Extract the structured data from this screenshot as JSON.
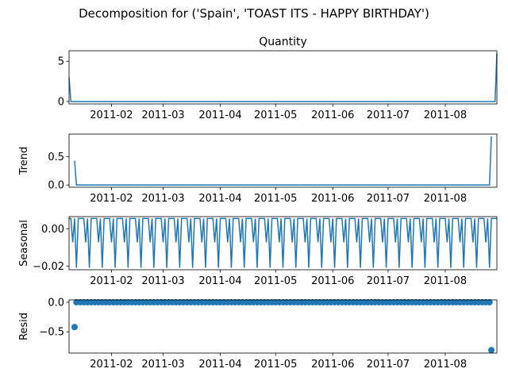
{
  "figure": {
    "suptitle": "Decomposition for ('Spain', 'TOAST ITS - HAPPY BIRTHDAY')"
  },
  "colors": {
    "series": "#1f77b4",
    "axes": "#000000"
  },
  "chart_data": [
    {
      "type": "line",
      "title": "Quantity",
      "ylabel": "",
      "xlim": [
        "2011-01-09",
        "2011-08-29"
      ],
      "ylim": [
        -0.3,
        6.3
      ],
      "x_ticks": [
        "2011-02",
        "2011-03",
        "2011-04",
        "2011-05",
        "2011-06",
        "2011-07",
        "2011-08"
      ],
      "y_ticks": [
        0,
        5
      ],
      "y_tick_labels": [
        "0",
        "5"
      ],
      "series": [
        {
          "x": [
            "2011-01-09",
            "2011-01-10",
            "2011-08-28",
            "2011-08-29"
          ],
          "y": [
            3,
            0,
            0,
            6
          ]
        }
      ]
    },
    {
      "type": "line",
      "title": "",
      "ylabel": "Trend",
      "xlim": [
        "2011-01-09",
        "2011-08-29"
      ],
      "ylim": [
        -0.04,
        0.9
      ],
      "x_ticks": [
        "2011-02",
        "2011-03",
        "2011-04",
        "2011-05",
        "2011-06",
        "2011-07",
        "2011-08"
      ],
      "y_ticks": [
        0.0,
        0.5
      ],
      "y_tick_labels": [
        "0.0",
        "0.5"
      ],
      "series": [
        {
          "x": [
            "2011-01-12",
            "2011-01-13",
            "2011-08-25",
            "2011-08-26"
          ],
          "y": [
            0.43,
            0,
            0,
            0.86
          ]
        }
      ]
    },
    {
      "type": "line",
      "title": "",
      "ylabel": "Seasonal",
      "xlim": [
        "2011-01-09",
        "2011-08-29"
      ],
      "ylim": [
        -0.022,
        0.0065
      ],
      "x_ticks": [
        "2011-02",
        "2011-03",
        "2011-04",
        "2011-05",
        "2011-06",
        "2011-07",
        "2011-08"
      ],
      "y_ticks": [
        0.0,
        -0.02
      ],
      "y_tick_labels": [
        "0.00",
        "−0.02"
      ],
      "weekly_pattern": [
        0.0055,
        0.0055,
        -0.0073,
        0.0055,
        -0.0209,
        0.0055,
        0.0055
      ],
      "series_start": "2011-01-09",
      "series_end": "2011-08-29"
    },
    {
      "type": "scatter",
      "title": "",
      "ylabel": "Resid",
      "xlim": [
        "2011-01-09",
        "2011-08-29"
      ],
      "ylim": [
        -0.86,
        0.04
      ],
      "x_ticks": [
        "2011-02",
        "2011-03",
        "2011-04",
        "2011-05",
        "2011-06",
        "2011-07",
        "2011-08"
      ],
      "y_ticks": [
        0.0,
        -0.5
      ],
      "y_tick_labels": [
        "0.0",
        "−0.5"
      ],
      "zero_range": [
        "2011-01-13",
        "2011-08-25"
      ],
      "outliers": [
        {
          "x": "2011-01-12",
          "y": -0.42
        },
        {
          "x": "2011-08-26",
          "y": -0.81
        }
      ]
    }
  ]
}
